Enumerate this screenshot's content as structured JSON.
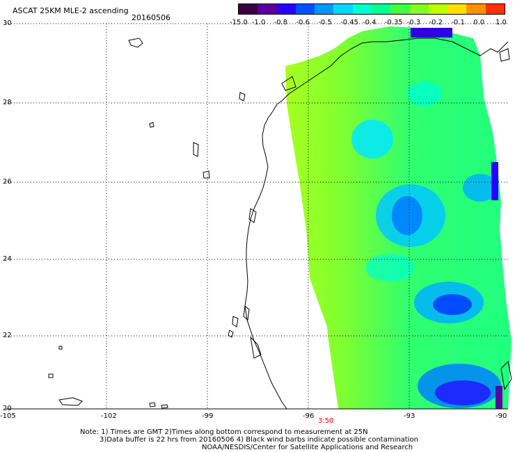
{
  "header": {
    "title": "ASCAT 25KM MLE-2 ascending",
    "date": "20160506"
  },
  "colors": {
    "palette": [
      "#3a0040",
      "#5a00a0",
      "#2800ff",
      "#0050ff",
      "#0098ff",
      "#00d8ff",
      "#00ffd0",
      "#00ff90",
      "#40ff40",
      "#80ff20",
      "#c0ff00",
      "#ffe000",
      "#ff9000",
      "#ff3000"
    ]
  },
  "colorbar": {
    "labels": [
      "-15.0",
      "-1.0",
      "-0.8",
      "-0.6",
      "-0.5",
      "-0.45",
      "-0.4",
      "-0.35",
      "-0.3",
      "-0.2",
      "-0.1",
      "0.0",
      "1.0"
    ]
  },
  "axes": {
    "lat_labels": [
      "30",
      "28",
      "26",
      "24",
      "22",
      "20"
    ],
    "lon_labels": [
      "-105",
      "-102",
      "-99",
      "-96",
      "-93",
      "-90"
    ]
  },
  "time_marker": "3:50",
  "notes": {
    "line1": "Note: 1) Times are GMT 2)Times along bottom correspond to measurement at 25N",
    "line2": "3)Data buffer is 22 hrs from 20160506 4) Black wind barbs indicate possible contamination",
    "line3": "NOAA/NESDIS/Center for Satellite Applications and Research"
  }
}
